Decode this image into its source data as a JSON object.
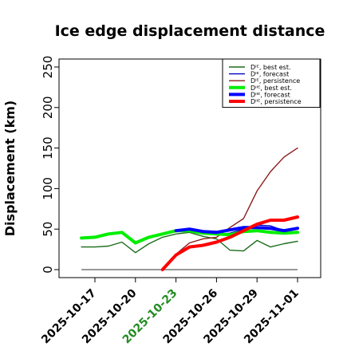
{
  "chart_data": {
    "type": "line",
    "title": "Ice edge displacement distance",
    "xlabel": "",
    "ylabel": "Displacement (km)",
    "ylim": [
      0,
      250
    ],
    "yticks": [
      0,
      50,
      100,
      150,
      200,
      250
    ],
    "xticks": [
      "2025-10-17",
      "2025-10-20",
      "2025-10-23",
      "2025-10-26",
      "2025-10-29",
      "2025-11-01"
    ],
    "xtick_colors": [
      "#000000",
      "#000000",
      "#228B22",
      "#000000",
      "#000000",
      "#000000"
    ],
    "grid": false,
    "legend_position": "top-right",
    "series": [
      {
        "name": "Dᴵᴱ, best est.",
        "color": "#1a6b1a",
        "width": 1.4,
        "x": [
          "2025-10-16",
          "2025-10-17",
          "2025-10-18",
          "2025-10-19",
          "2025-10-20",
          "2025-10-21",
          "2025-10-22",
          "2025-10-23",
          "2025-10-24",
          "2025-10-25",
          "2025-10-26",
          "2025-10-27",
          "2025-10-28",
          "2025-10-29",
          "2025-10-30",
          "2025-10-31",
          "2025-11-01"
        ],
        "values": [
          28,
          28,
          29,
          34,
          21,
          32,
          40,
          44,
          46,
          41,
          38,
          24,
          23,
          36,
          28,
          32,
          35
        ]
      },
      {
        "name": "Dᴵᴱ, forecast",
        "color": "#0000cc",
        "width": 1.4,
        "x": [
          "2025-10-23",
          "2025-10-24",
          "2025-10-25",
          "2025-10-26",
          "2025-10-27",
          "2025-10-28",
          "2025-10-29",
          "2025-10-30",
          "2025-10-31",
          "2025-11-01"
        ],
        "values": [
          47,
          50,
          46,
          44,
          45,
          50,
          55,
          54,
          48,
          50
        ]
      },
      {
        "name": "Dᴵᴱ, persistence",
        "color": "#8b1a1a",
        "width": 1.4,
        "x": [
          "2025-10-23",
          "2025-10-24",
          "2025-10-25",
          "2025-10-26",
          "2025-10-27",
          "2025-10-28",
          "2025-10-29",
          "2025-10-30",
          "2025-10-31",
          "2025-11-01"
        ],
        "values": [
          19,
          33,
          38,
          40,
          52,
          63,
          97,
          121,
          139,
          150
        ]
      },
      {
        "name": "Dᴵᴵᴱ, best est.",
        "color": "#00ee00",
        "width": 4,
        "x": [
          "2025-10-16",
          "2025-10-17",
          "2025-10-18",
          "2025-10-19",
          "2025-10-20",
          "2025-10-21",
          "2025-10-22",
          "2025-10-23",
          "2025-10-24",
          "2025-10-25",
          "2025-10-26",
          "2025-10-27",
          "2025-10-28",
          "2025-10-29",
          "2025-10-30",
          "2025-10-31",
          "2025-11-01"
        ],
        "values": [
          39,
          40,
          44,
          46,
          33,
          40,
          44,
          48,
          48,
          45,
          44,
          43,
          47,
          48,
          46,
          45,
          46
        ]
      },
      {
        "name": "Dᴵᴵᴱ, forecast",
        "color": "#0000ff",
        "width": 4,
        "x": [
          "2025-10-23",
          "2025-10-24",
          "2025-10-25",
          "2025-10-26",
          "2025-10-27",
          "2025-10-28",
          "2025-10-29",
          "2025-10-30",
          "2025-10-31",
          "2025-11-01"
        ],
        "values": [
          48,
          50,
          47,
          46,
          49,
          52,
          52,
          51,
          48,
          51
        ]
      },
      {
        "name": "Dᴵᴵᴱ, persistence",
        "color": "#ff0000",
        "width": 4,
        "x": [
          "2025-10-22",
          "2025-10-23",
          "2025-10-24",
          "2025-10-25",
          "2025-10-26",
          "2025-10-27",
          "2025-10-28",
          "2025-10-29",
          "2025-10-30",
          "2025-10-31",
          "2025-11-01"
        ],
        "values": [
          0,
          18,
          28,
          30,
          34,
          40,
          48,
          56,
          61,
          61,
          65
        ]
      }
    ],
    "baseline": {
      "color": "#777777",
      "x": [
        "2025-10-16",
        "2025-11-01"
      ],
      "value": 0
    }
  }
}
